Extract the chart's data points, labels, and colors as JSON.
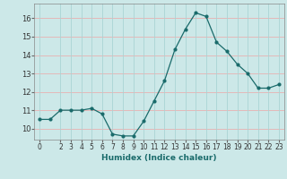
{
  "x": [
    0,
    1,
    2,
    3,
    4,
    5,
    6,
    7,
    8,
    9,
    10,
    11,
    12,
    13,
    14,
    15,
    16,
    17,
    18,
    19,
    20,
    21,
    22,
    23
  ],
  "y": [
    10.5,
    10.5,
    11.0,
    11.0,
    11.0,
    11.1,
    10.8,
    9.7,
    9.6,
    9.6,
    10.4,
    11.5,
    12.6,
    14.3,
    15.4,
    16.3,
    16.1,
    14.7,
    14.2,
    13.5,
    13.0,
    12.2,
    12.2,
    12.4
  ],
  "xlabel": "Humidex (Indice chaleur)",
  "ylim": [
    9.4,
    16.8
  ],
  "xlim": [
    -0.5,
    23.5
  ],
  "bg_color": "#cce8e8",
  "line_color": "#1a6b6b",
  "marker_color": "#1a6b6b",
  "grid_color_h": "#e8b0b0",
  "grid_color_v": "#aad4d4",
  "yticks": [
    10,
    11,
    12,
    13,
    14,
    15,
    16
  ],
  "xticks": [
    0,
    2,
    3,
    4,
    5,
    6,
    7,
    8,
    9,
    10,
    11,
    12,
    13,
    14,
    15,
    16,
    17,
    18,
    19,
    20,
    21,
    22,
    23
  ],
  "xlabel_color": "#1a6b6b",
  "xlabel_fontsize": 6.5,
  "tick_fontsize": 5.5,
  "ytick_fontsize": 6.0
}
